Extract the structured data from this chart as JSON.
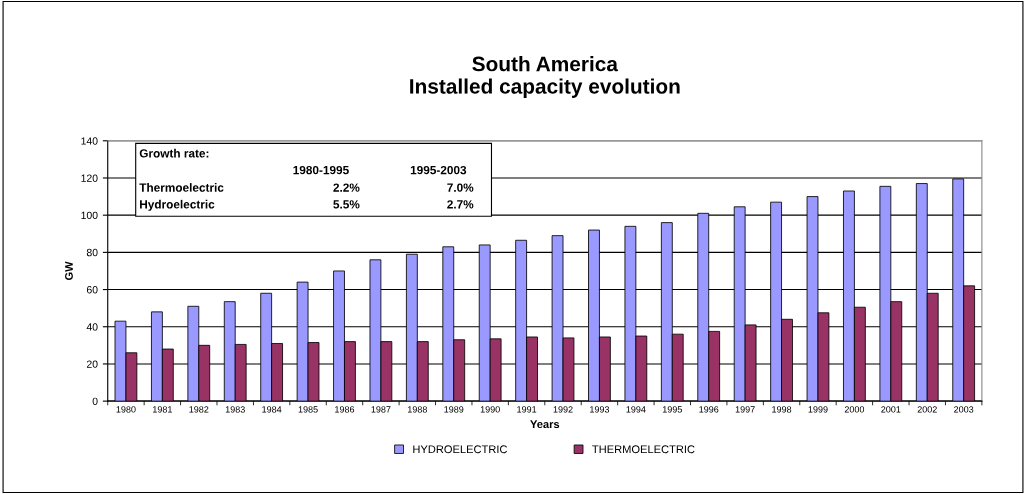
{
  "chart_data": {
    "type": "bar",
    "title": "South America\nInstalled capacity evolution",
    "xlabel": "Years",
    "ylabel": "GW",
    "categories": [
      "1980",
      "1981",
      "1982",
      "1983",
      "1984",
      "1985",
      "1986",
      "1987",
      "1988",
      "1989",
      "1990",
      "1991",
      "1992",
      "1993",
      "1994",
      "1995",
      "1996",
      "1997",
      "1998",
      "1999",
      "2000",
      "2001",
      "2002",
      "2003"
    ],
    "series": [
      {
        "name": "HYDROELECTRIC",
        "color": "#9999ff",
        "values": [
          43,
          48,
          51,
          53.5,
          58,
          64,
          70,
          76,
          79,
          83,
          84,
          86.5,
          89,
          92,
          94,
          96,
          101,
          104.5,
          107,
          110,
          113,
          115.5,
          117,
          119.5
        ]
      },
      {
        "name": "THERMOELECTRIC",
        "color": "#993366",
        "values": [
          26,
          28,
          30,
          30.5,
          31,
          31.5,
          32,
          32,
          32,
          33,
          33.5,
          34.5,
          34,
          34.5,
          35,
          36,
          37.5,
          41,
          44,
          47.5,
          50.5,
          53.5,
          58,
          62
        ]
      }
    ],
    "annotations": [
      "Growth rate:",
      "1980-1995",
      "1995-2003",
      "Thermoelectric",
      "2.2%",
      "7.0%",
      "Hydroelectric",
      "5.5%",
      "2.7%"
    ],
    "ylim": [
      0,
      140
    ],
    "yticks": [
      0,
      20,
      40,
      60,
      80,
      100,
      120,
      140
    ],
    "grid": "y",
    "legend": "bottom"
  }
}
